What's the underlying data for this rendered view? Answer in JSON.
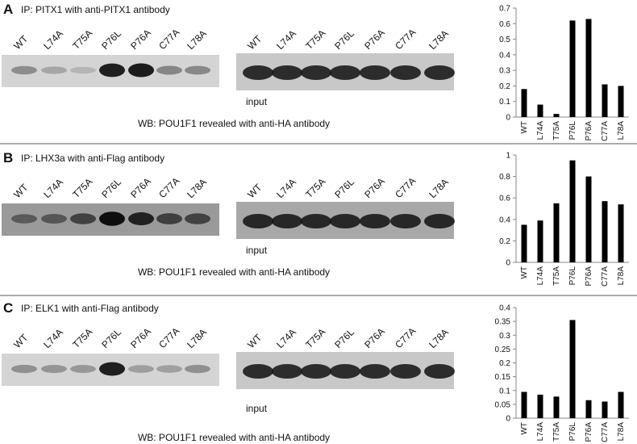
{
  "panels": [
    {
      "label": "A",
      "ip": "IP: PITX1 with anti-PITX1 antibody",
      "input": "input",
      "wb": "WB: POU1F1 revealed with anti-HA antibody"
    },
    {
      "label": "B",
      "ip": "IP: LHX3a with anti-Flag antibody",
      "input": "input",
      "wb": "WB: POU1F1 revealed with anti-HA antibody"
    },
    {
      "label": "C",
      "ip": "IP: ELK1 with anti-Flag antibody",
      "input": "input",
      "wb": "WB: POU1F1 revealed with anti-HA antibody"
    }
  ],
  "chart_data": [
    {
      "type": "bar",
      "categories": [
        "WT",
        "L74A",
        "T75A",
        "P76L",
        "P76A",
        "C77A",
        "L78A"
      ],
      "values": [
        0.18,
        0.08,
        0.02,
        0.62,
        0.63,
        0.21,
        0.2
      ],
      "color": "#000000",
      "ylim": [
        0,
        0.7
      ],
      "yticks": [
        0,
        0.1,
        0.2,
        0.3,
        0.4,
        0.5,
        0.6,
        0.7
      ]
    },
    {
      "type": "bar",
      "categories": [
        "WT",
        "L74A",
        "T75A",
        "P76L",
        "P76A",
        "C77A",
        "L78A"
      ],
      "values": [
        0.35,
        0.39,
        0.55,
        0.95,
        0.8,
        0.57,
        0.54
      ],
      "color": "#000000",
      "ylim": [
        0,
        1
      ],
      "yticks": [
        0,
        0.2,
        0.4,
        0.6,
        0.8,
        1
      ]
    },
    {
      "type": "bar",
      "categories": [
        "WT",
        "L74A",
        "T75A",
        "P76L",
        "P76A",
        "C77A",
        "L78A"
      ],
      "values": [
        0.095,
        0.085,
        0.078,
        0.355,
        0.065,
        0.06,
        0.095
      ],
      "color": "#000000",
      "ylim": [
        0,
        0.4
      ],
      "yticks": [
        0,
        0.05,
        0.1,
        0.15,
        0.2,
        0.25,
        0.3,
        0.35,
        0.4
      ]
    }
  ]
}
